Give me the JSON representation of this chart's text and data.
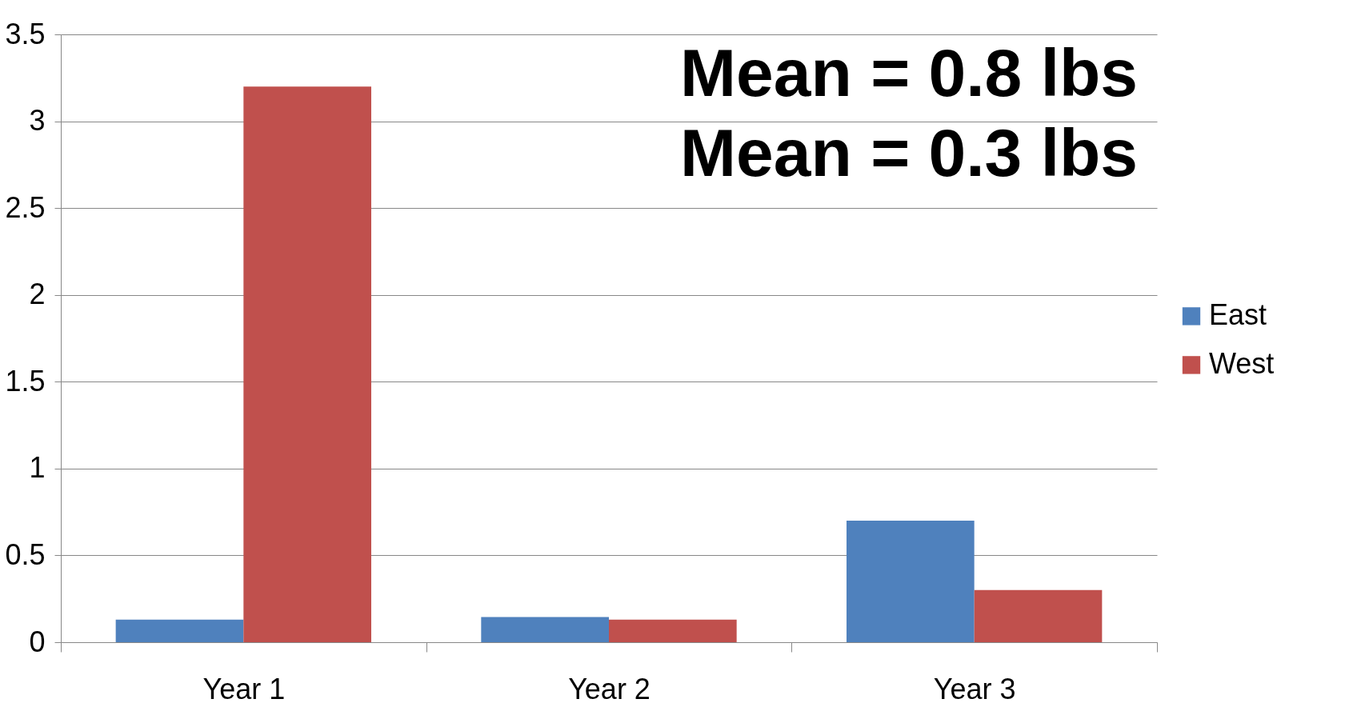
{
  "chart_data": {
    "type": "bar",
    "categories": [
      "Year 1",
      "Year 2",
      "Year 3"
    ],
    "series": [
      {
        "name": "East",
        "color": "#4f81bd",
        "values": [
          0.13,
          0.145,
          0.7
        ]
      },
      {
        "name": "West",
        "color": "#c0504d",
        "values": [
          3.2,
          0.13,
          0.3
        ]
      }
    ],
    "ylim": [
      0,
      3.5
    ],
    "yticks": [
      0,
      0.5,
      1,
      1.5,
      2,
      2.5,
      3,
      3.5
    ],
    "grid": "y",
    "legend": "right",
    "annotations": [
      "Mean = 0.8 lbs",
      "Mean = 0.3 lbs"
    ]
  }
}
